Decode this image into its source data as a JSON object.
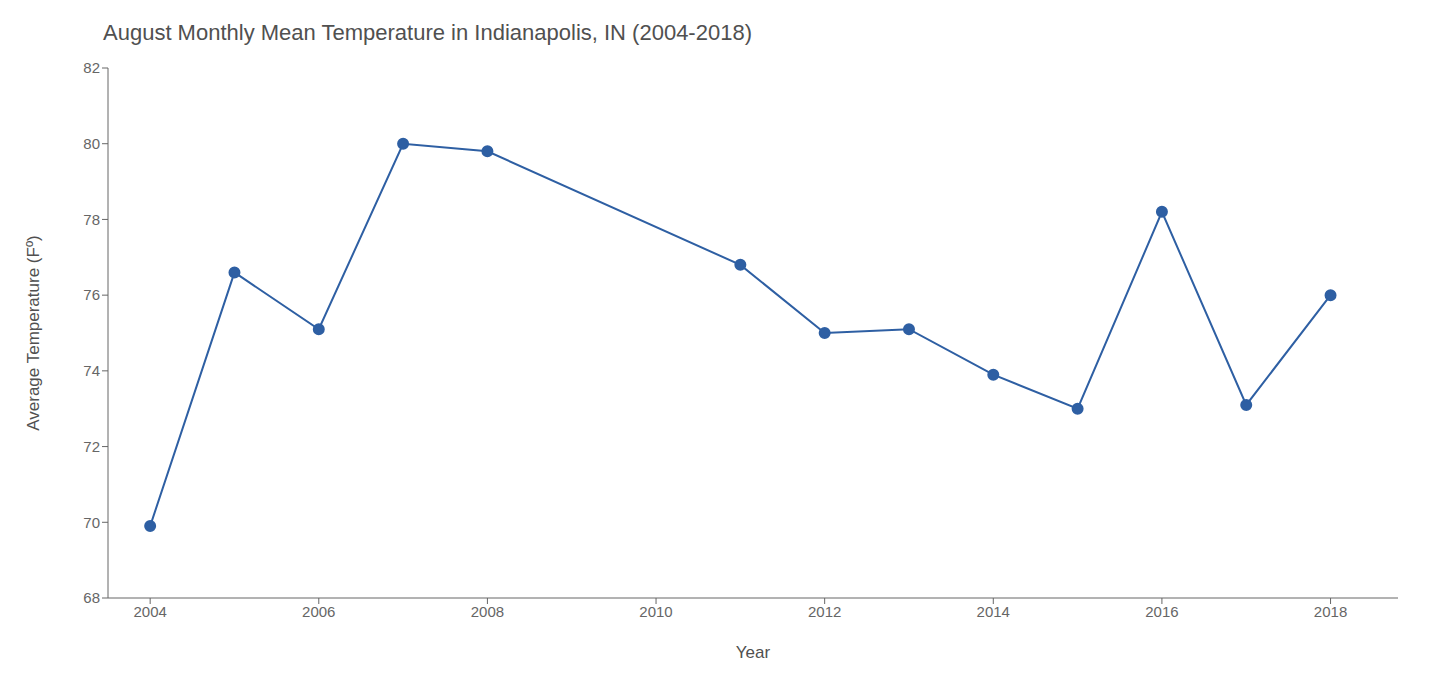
{
  "chart_data": {
    "type": "line",
    "title": "August Monthly Mean Temperature in Indianapolis, IN (2004-2018)",
    "xlabel": "Year",
    "ylabel": "Average Temperature (Fº)",
    "x": [
      2004,
      2005,
      2006,
      2007,
      2008,
      2011,
      2012,
      2013,
      2014,
      2015,
      2016,
      2017,
      2018
    ],
    "values": [
      69.9,
      76.6,
      75.1,
      80.0,
      79.8,
      76.8,
      75.0,
      75.1,
      73.9,
      73.0,
      78.2,
      73.1,
      76.0
    ],
    "color": "#2E5FA3",
    "marker": "circle",
    "xlim": [
      2003.5,
      2018.8
    ],
    "ylim": [
      68,
      82
    ],
    "xticks": [
      2004,
      2006,
      2008,
      2010,
      2012,
      2014,
      2016,
      2018
    ],
    "yticks": [
      68,
      70,
      72,
      74,
      76,
      78,
      80,
      82
    ],
    "grid": false
  }
}
